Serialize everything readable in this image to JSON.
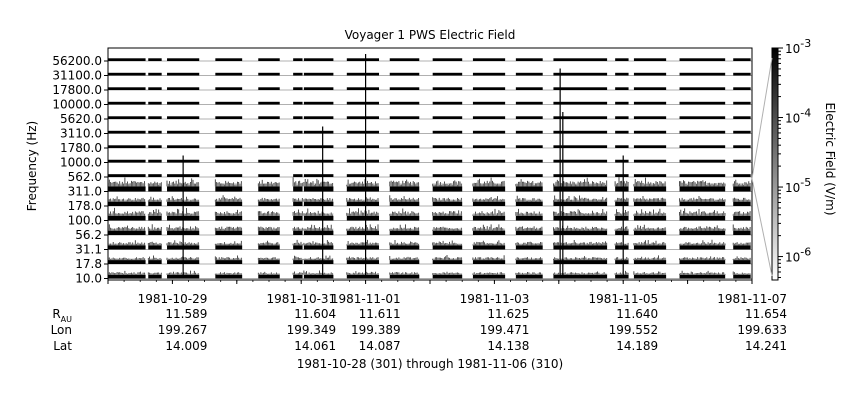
{
  "chart_data": {
    "type": "heatmap",
    "title": "Voyager 1 PWS Electric Field",
    "ylabel": "Frequency (Hz)",
    "colorbar_label": "Electric Field (V/m)",
    "colorbar_scale": "log",
    "colorbar_range": [
      4.6e-07,
      0.001
    ],
    "colorbar_ticks": [
      {
        "mantissa": "10",
        "exponent": "-3",
        "value": 0.001
      },
      {
        "mantissa": "10",
        "exponent": "-4",
        "value": 0.0001
      },
      {
        "mantissa": "10",
        "exponent": "-5",
        "value": 1e-05
      },
      {
        "mantissa": "10",
        "exponent": "-6",
        "value": 1e-06
      }
    ],
    "frequency_channels": [
      "56200.0",
      "31100.0",
      "17800.0",
      "10000.0",
      "5620.0",
      "3110.0",
      "1780.0",
      "1000.0",
      "562.0",
      "311.0",
      "178.0",
      "100.0",
      "56.2",
      "31.1",
      "17.8",
      "10.0"
    ],
    "channel_level": [
      0.05,
      0.05,
      0.05,
      0.05,
      0.05,
      0.05,
      0.05,
      0.06,
      0.08,
      0.65,
      0.45,
      0.55,
      0.45,
      0.4,
      0.35,
      0.3
    ],
    "xlim": [
      "1981-10-28T00:00",
      "1981-11-07T00:00"
    ],
    "x_tick_labels": [
      "1981-10-29",
      "1981-10-31",
      "1981-11-01",
      "1981-11-03",
      "1981-11-05",
      "1981-11-07"
    ],
    "x_tick_dates": [
      "1981-10-29",
      "1981-10-31",
      "1981-11-01",
      "1981-11-03",
      "1981-11-05",
      "1981-11-07"
    ],
    "minor_tick_dates": [
      "1981-10-28",
      "1981-10-29",
      "1981-10-30",
      "1981-10-31",
      "1981-11-01",
      "1981-11-02",
      "1981-11-03",
      "1981-11-04",
      "1981-11-05",
      "1981-11-06",
      "1981-11-07"
    ],
    "data_segments": [
      [
        "1981-10-28T00:00",
        "1981-10-28T14:00"
      ],
      [
        "1981-10-28T15:00",
        "1981-10-28T20:00"
      ],
      [
        "1981-10-28T22:00",
        "1981-10-29T10:00"
      ],
      [
        "1981-10-29T16:00",
        "1981-10-30T02:00"
      ],
      [
        "1981-10-30T08:00",
        "1981-10-30T16:00"
      ],
      [
        "1981-10-30T21:00",
        "1981-10-31T00:30"
      ],
      [
        "1981-10-31T01:00",
        "1981-10-31T12:00"
      ],
      [
        "1981-10-31T17:00",
        "1981-11-01T05:00"
      ],
      [
        "1981-11-01T09:00",
        "1981-11-01T20:00"
      ],
      [
        "1981-11-02T01:00",
        "1981-11-02T12:00"
      ],
      [
        "1981-11-02T16:00",
        "1981-11-03T04:00"
      ],
      [
        "1981-11-03T08:00",
        "1981-11-03T18:00"
      ],
      [
        "1981-11-03T22:00",
        "1981-11-04T18:00"
      ],
      [
        "1981-11-04T21:00",
        "1981-11-05T02:00"
      ],
      [
        "1981-11-05T04:00",
        "1981-11-05T16:00"
      ],
      [
        "1981-11-05T21:00",
        "1981-11-06T14:00"
      ],
      [
        "1981-11-06T17:00",
        "1981-11-06T23:30"
      ]
    ],
    "bursts": [
      {
        "date": "1981-11-01T00:00",
        "top": "56200.0"
      },
      {
        "date": "1981-11-04T00:30",
        "top": "31100.0"
      },
      {
        "date": "1981-11-04T01:30",
        "top": "5620.0"
      },
      {
        "date": "1981-10-31T08:00",
        "top": "3110.0"
      },
      {
        "date": "1981-11-05T00:00",
        "top": "1000.0"
      },
      {
        "date": "1981-10-29T04:00",
        "top": "1000.0"
      }
    ],
    "ephemeris": {
      "rows": [
        {
          "label": "R",
          "label_sub": "AU",
          "values": [
            "11.589",
            "11.604",
            "11.611",
            "11.625",
            "11.640",
            "11.654"
          ]
        },
        {
          "label": "Lon",
          "label_sub": "",
          "values": [
            "199.267",
            "199.349",
            "199.389",
            "199.471",
            "199.552",
            "199.633"
          ]
        },
        {
          "label": "Lat",
          "label_sub": "",
          "values": [
            "14.009",
            "14.061",
            "14.087",
            "14.138",
            "14.189",
            "14.241"
          ]
        }
      ]
    },
    "date_range_caption": "1981-10-28 (301) through 1981-11-06 (310)"
  }
}
